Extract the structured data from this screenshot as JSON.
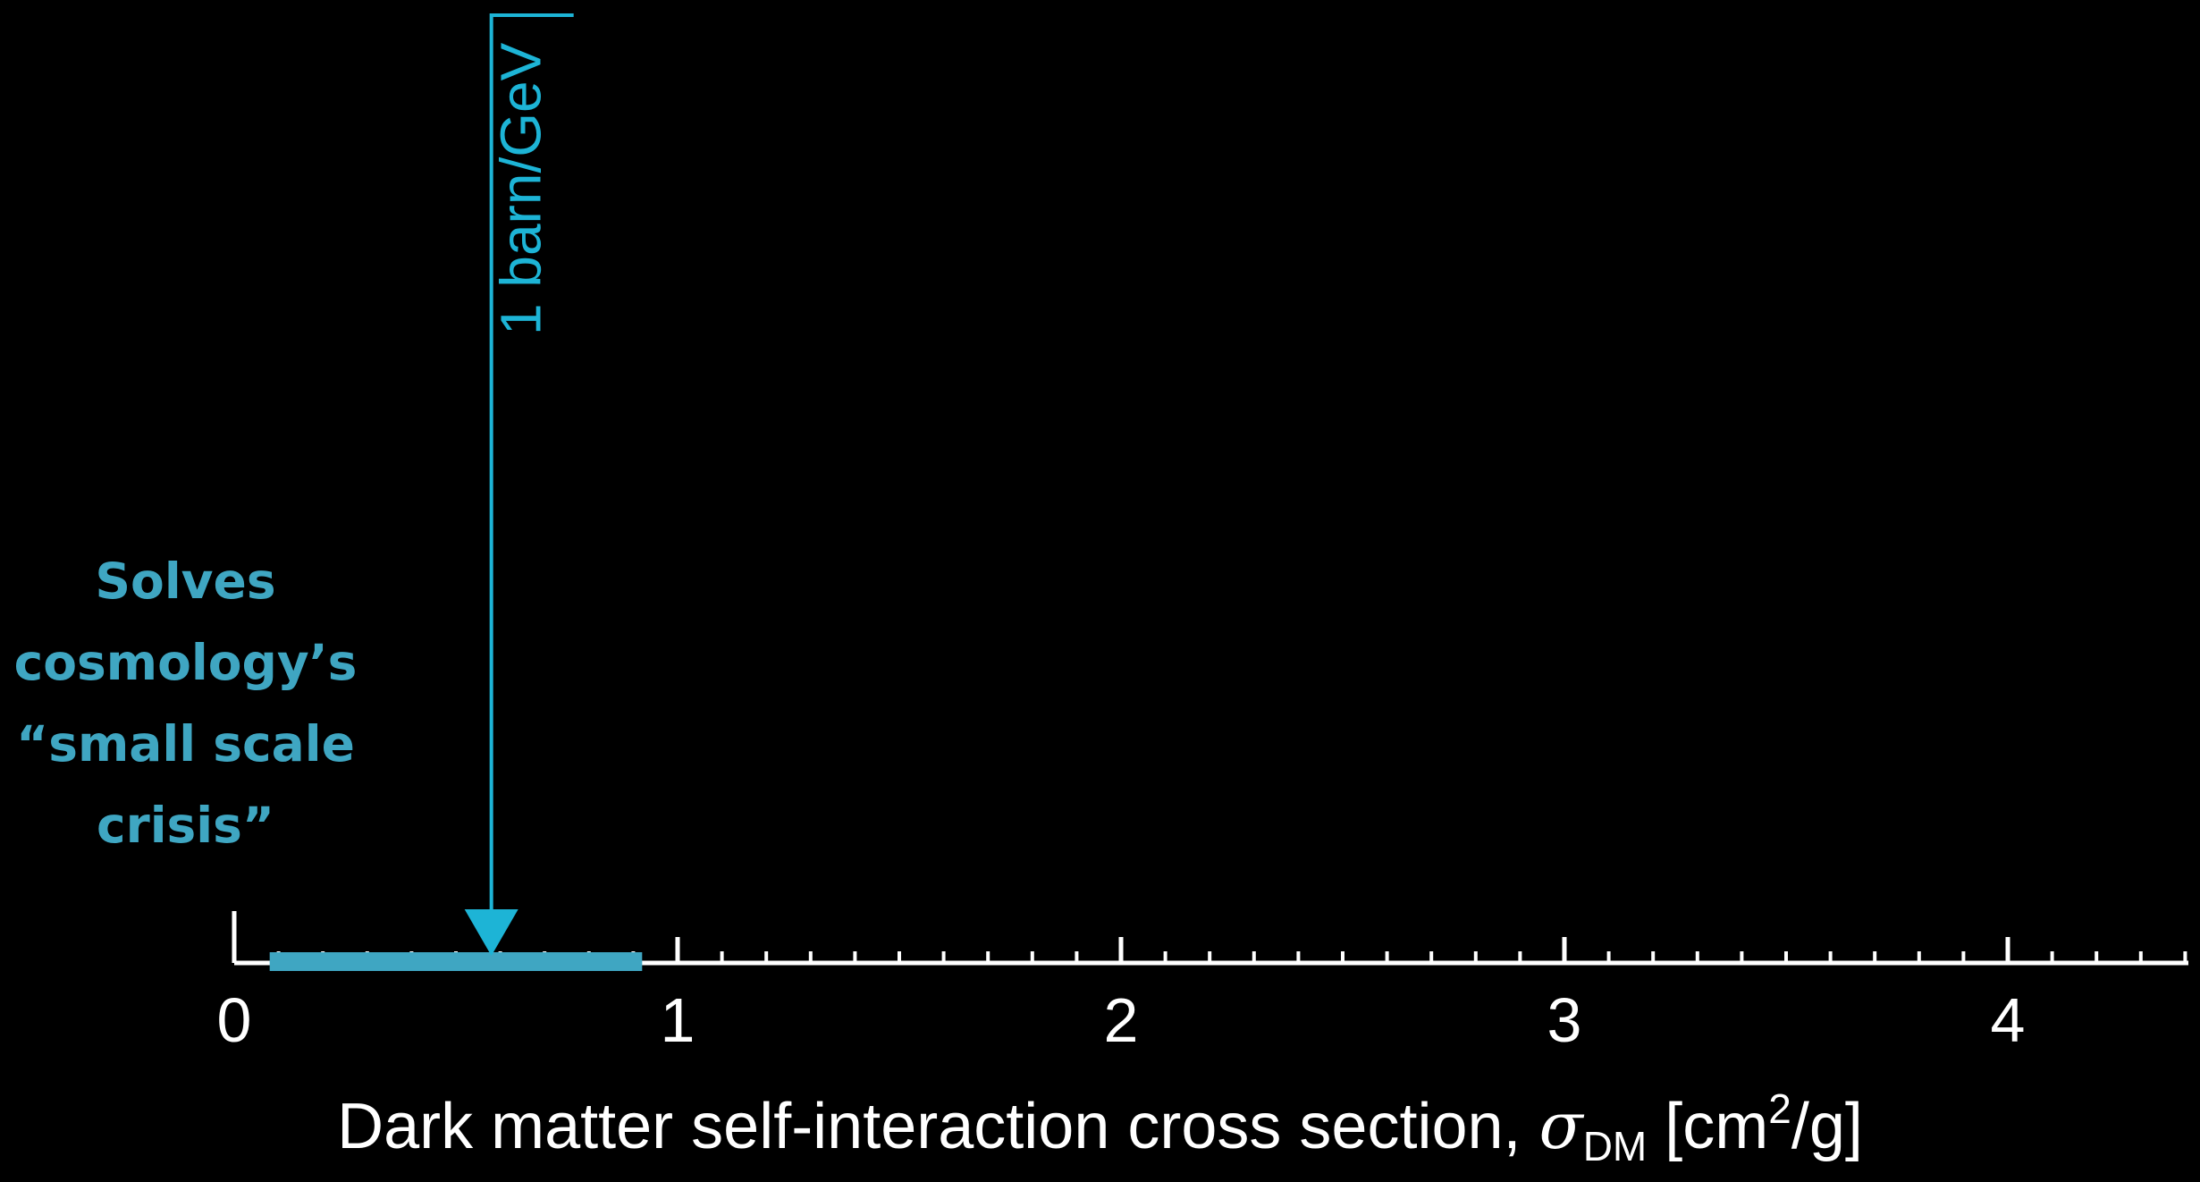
{
  "chart_data": {
    "type": "line",
    "xlabel": {
      "prefix": "Dark matter self-interaction cross section, ",
      "symbol": "σ",
      "subscript": "DM",
      "unit_open": " [cm",
      "unit_sup": "2",
      "unit_close": "/g]"
    },
    "xlim": [
      0,
      4.4
    ],
    "ticks": [
      "0",
      "1",
      "2",
      "3",
      "4"
    ],
    "major_ticks": [
      1,
      2,
      3,
      4
    ],
    "minor_step": 0.1,
    "axis_color": "#ffffff",
    "range_band": {
      "from": 0.08,
      "to": 0.92,
      "label": [
        "Solves",
        "cosmology’s",
        "“small scale",
        "crisis”"
      ],
      "color": "#3fa6c2"
    },
    "marker": {
      "x": 0.58,
      "label": "1 barn/GeV",
      "color": "#1db4d6"
    }
  }
}
